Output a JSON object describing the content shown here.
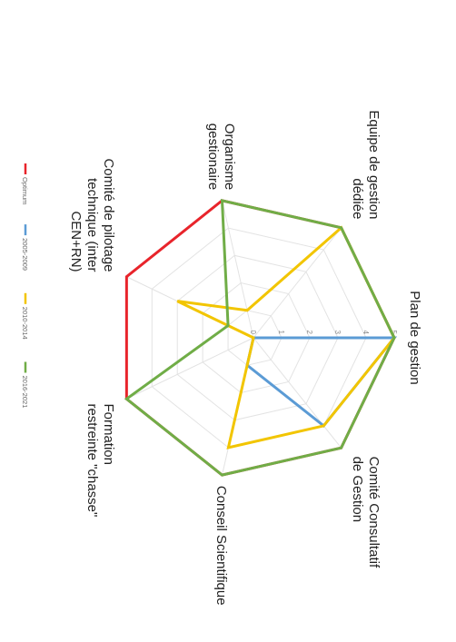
{
  "chart_data": {
    "type": "radar",
    "title": "",
    "orientation": "rotated-90-clockwise",
    "axes": [
      "Plan de gestion",
      "Comité Consultatif de Gestion",
      "Conseil Scientifique",
      "Formation restreinte \"chasse\"",
      "Comité de pilotage technique (inter CEN+RN)",
      "Organisme gestionaire",
      "Equipe de gestion dédiée"
    ],
    "axis_label_lines": [
      [
        "Plan de gestion"
      ],
      [
        "Comité Consultatif",
        "de Gestion"
      ],
      [
        "Conseil Scientifique"
      ],
      [
        "Formation",
        "restreinte \"chasse\""
      ],
      [
        "Comité de pilotage",
        "technique (inter",
        "CEN+RN)"
      ],
      [
        "Organisme",
        "gestionaire"
      ],
      [
        "Equipe de gestion",
        "dédiée"
      ]
    ],
    "radial_range": [
      0,
      5
    ],
    "radial_ticks": [
      0,
      1,
      2,
      3,
      4,
      5
    ],
    "radial_tick_labels": [
      "0",
      "1",
      "2",
      "3",
      "4",
      "5"
    ],
    "grid": true,
    "legend_position": "left",
    "series": [
      {
        "name": "Optimum",
        "color": "#e8242b",
        "values": [
          5,
          5,
          5,
          5,
          5,
          5,
          5
        ]
      },
      {
        "name": "2005-2009",
        "color": "#5b9bd5",
        "values": [
          5,
          4,
          1,
          0,
          0,
          0,
          0
        ]
      },
      {
        "name": "2010-2014",
        "color": "#f2c500",
        "values": [
          5,
          4,
          4,
          0,
          3,
          1,
          5
        ]
      },
      {
        "name": "2016-2021",
        "color": "#70ad47",
        "values": [
          5,
          5,
          5,
          5,
          1,
          5,
          5
        ]
      }
    ]
  }
}
